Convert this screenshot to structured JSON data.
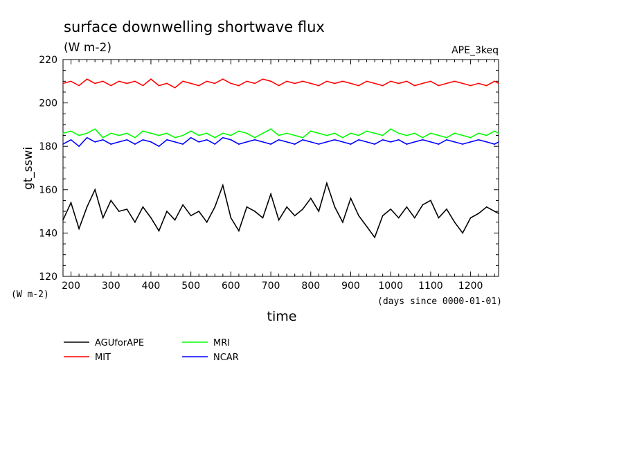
{
  "chart_data": {
    "type": "line",
    "title": "surface downwelling shortwave flux",
    "subtitle": "(W m-2)",
    "experiment": "APE_3keq",
    "xlabel": "time",
    "x_units": "(days since 0000-01-01)",
    "ylabel": "gt_sswi",
    "y_units": "(W m-2)",
    "xlim": [
      180,
      1270
    ],
    "ylim": [
      120,
      220
    ],
    "x_ticks": [
      200,
      300,
      400,
      500,
      600,
      700,
      800,
      900,
      1000,
      1100,
      1200
    ],
    "y_ticks": [
      120,
      140,
      160,
      180,
      200,
      220
    ],
    "x_tick_labels": [
      "200",
      "300",
      "400",
      "500",
      "600",
      "700",
      "800",
      "900",
      "1000",
      "1100",
      "1200"
    ],
    "y_tick_labels": [
      "120",
      "140",
      "160",
      "180",
      "200",
      "220"
    ],
    "grid": false,
    "legend_position": "bottom-left",
    "series": [
      {
        "name": "AGUforAPE",
        "color": "#000000",
        "x": [
          180,
          200,
          220,
          240,
          260,
          280,
          300,
          320,
          340,
          360,
          380,
          400,
          420,
          440,
          460,
          480,
          500,
          520,
          540,
          560,
          580,
          600,
          620,
          640,
          660,
          680,
          700,
          720,
          740,
          760,
          780,
          800,
          820,
          840,
          860,
          880,
          900,
          920,
          940,
          960,
          980,
          1000,
          1020,
          1040,
          1060,
          1080,
          1100,
          1120,
          1140,
          1160,
          1180,
          1200,
          1220,
          1240,
          1260,
          1270
        ],
        "values": [
          146,
          154,
          142,
          152,
          160,
          147,
          155,
          150,
          151,
          145,
          152,
          147,
          141,
          150,
          146,
          153,
          148,
          150,
          145,
          152,
          162,
          147,
          141,
          152,
          150,
          147,
          158,
          146,
          152,
          148,
          151,
          156,
          150,
          163,
          152,
          145,
          156,
          148,
          143,
          138,
          148,
          151,
          147,
          152,
          147,
          153,
          155,
          147,
          151,
          145,
          140,
          147,
          149,
          152,
          150,
          149
        ]
      },
      {
        "name": "MIT",
        "color": "#ff0000",
        "x": [
          180,
          200,
          220,
          240,
          260,
          280,
          300,
          320,
          340,
          360,
          380,
          400,
          420,
          440,
          460,
          480,
          500,
          520,
          540,
          560,
          580,
          600,
          620,
          640,
          660,
          680,
          700,
          720,
          740,
          760,
          780,
          800,
          820,
          840,
          860,
          880,
          900,
          920,
          940,
          960,
          980,
          1000,
          1020,
          1040,
          1060,
          1080,
          1100,
          1120,
          1140,
          1160,
          1180,
          1200,
          1220,
          1240,
          1260,
          1270
        ],
        "values": [
          209,
          210,
          208,
          211,
          209,
          210,
          208,
          210,
          209,
          210,
          208,
          211,
          208,
          209,
          207,
          210,
          209,
          208,
          210,
          209,
          211,
          209,
          208,
          210,
          209,
          211,
          210,
          208,
          210,
          209,
          210,
          209,
          208,
          210,
          209,
          210,
          209,
          208,
          210,
          209,
          208,
          210,
          209,
          210,
          208,
          209,
          210,
          208,
          209,
          210,
          209,
          208,
          209,
          208,
          210,
          209
        ]
      },
      {
        "name": "MRI",
        "color": "#00ff00",
        "x": [
          180,
          200,
          220,
          240,
          260,
          280,
          300,
          320,
          340,
          360,
          380,
          400,
          420,
          440,
          460,
          480,
          500,
          520,
          540,
          560,
          580,
          600,
          620,
          640,
          660,
          680,
          700,
          720,
          740,
          760,
          780,
          800,
          820,
          840,
          860,
          880,
          900,
          920,
          940,
          960,
          980,
          1000,
          1020,
          1040,
          1060,
          1080,
          1100,
          1120,
          1140,
          1160,
          1180,
          1200,
          1220,
          1240,
          1260,
          1270
        ],
        "values": [
          186,
          187,
          185,
          186,
          188,
          184,
          186,
          185,
          186,
          184,
          187,
          186,
          185,
          186,
          184,
          185,
          187,
          185,
          186,
          184,
          186,
          185,
          187,
          186,
          184,
          186,
          188,
          185,
          186,
          185,
          184,
          187,
          186,
          185,
          186,
          184,
          186,
          185,
          187,
          186,
          185,
          188,
          186,
          185,
          186,
          184,
          186,
          185,
          184,
          186,
          185,
          184,
          186,
          185,
          187,
          186
        ]
      },
      {
        "name": "NCAR",
        "color": "#0000ff",
        "x": [
          180,
          200,
          220,
          240,
          260,
          280,
          300,
          320,
          340,
          360,
          380,
          400,
          420,
          440,
          460,
          480,
          500,
          520,
          540,
          560,
          580,
          600,
          620,
          640,
          660,
          680,
          700,
          720,
          740,
          760,
          780,
          800,
          820,
          840,
          860,
          880,
          900,
          920,
          940,
          960,
          980,
          1000,
          1020,
          1040,
          1060,
          1080,
          1100,
          1120,
          1140,
          1160,
          1180,
          1200,
          1220,
          1240,
          1260,
          1270
        ],
        "values": [
          181,
          183,
          180,
          184,
          182,
          183,
          181,
          182,
          183,
          181,
          183,
          182,
          180,
          183,
          182,
          181,
          184,
          182,
          183,
          181,
          184,
          183,
          181,
          182,
          183,
          182,
          181,
          183,
          182,
          181,
          183,
          182,
          181,
          182,
          183,
          182,
          181,
          183,
          182,
          181,
          183,
          182,
          183,
          181,
          182,
          183,
          182,
          181,
          183,
          182,
          181,
          182,
          183,
          182,
          181,
          182
        ]
      }
    ]
  }
}
